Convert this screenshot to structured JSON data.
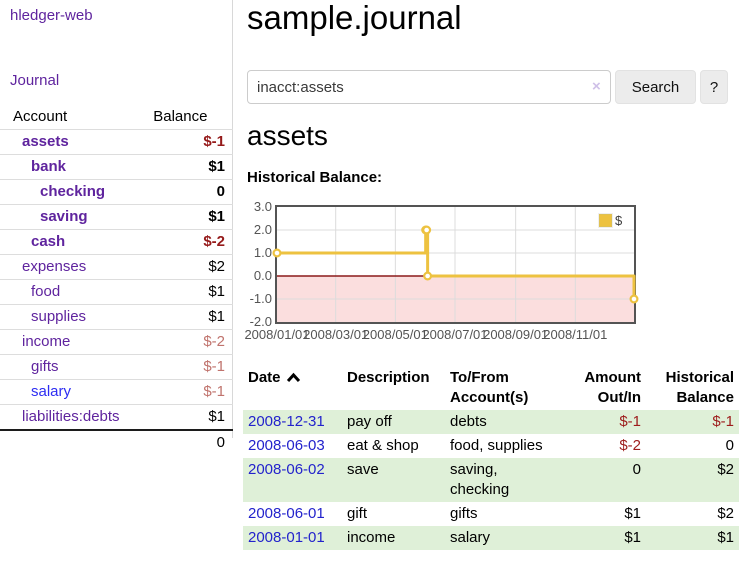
{
  "sidebar": {
    "app_title": "hledger-web",
    "journal_link": "Journal",
    "account_table": {
      "account_header": "Account",
      "balance_header": "Balance",
      "accounts": [
        {
          "name": "assets",
          "balance": "$-1"
        },
        {
          "name": "bank",
          "balance": "$1"
        },
        {
          "name": "checking",
          "balance": "0"
        },
        {
          "name": "saving",
          "balance": "$1"
        },
        {
          "name": "cash",
          "balance": "$-2"
        },
        {
          "name": "expenses",
          "balance": "$2"
        },
        {
          "name": "food",
          "balance": "$1"
        },
        {
          "name": "supplies",
          "balance": "$1"
        },
        {
          "name": "income",
          "balance": "$-2"
        },
        {
          "name": "gifts",
          "balance": "$-1"
        },
        {
          "name": "salary",
          "balance": "$-1"
        },
        {
          "name": "liabilities:debts",
          "balance": "$1"
        }
      ],
      "total": "0"
    }
  },
  "header": {
    "title": "sample.journal"
  },
  "search": {
    "value": "inacct:assets",
    "clear_icon": "×",
    "button_label": "Search",
    "help_label": "?"
  },
  "account_page": {
    "heading": "assets"
  },
  "chart_data": {
    "type": "line",
    "title": "Historical Balance:",
    "step": true,
    "x_range": [
      "2008-01-01",
      "2008-12-31"
    ],
    "ylim": [
      -2,
      3
    ],
    "y_ticks": [
      "3.0",
      "2.0",
      "1.0",
      "0.0",
      "-1.0",
      "-2.0"
    ],
    "x_ticks": [
      "2008/01/01",
      "2008/03/01",
      "2008/05/01",
      "2008/07/01",
      "2008/09/01",
      "2008/11/01"
    ],
    "series": [
      {
        "name": "$",
        "color": "#edc240",
        "points": [
          [
            "2008-01-01",
            1
          ],
          [
            "2008-06-01",
            2
          ],
          [
            "2008-06-02",
            2
          ],
          [
            "2008-06-03",
            0
          ],
          [
            "2008-12-31",
            -1
          ]
        ]
      }
    ],
    "grid_color": "#dcdcdc",
    "negative_region_color": "#fbdede",
    "zero_line_color": "#8b1a1a",
    "legend_position": "top-right"
  },
  "register": {
    "headers": {
      "date": "Date",
      "description": "Description",
      "account": "To/From Account(s)",
      "amount": "Amount Out/In",
      "balance": "Historical Balance"
    },
    "rows": [
      {
        "date": "2008-12-31",
        "description": "pay off",
        "accounts": "debts",
        "amount": "$-1",
        "balance": "$-1"
      },
      {
        "date": "2008-06-03",
        "description": "eat & shop",
        "accounts": "food, supplies",
        "amount": "$-2",
        "balance": "0"
      },
      {
        "date": "2008-06-02",
        "description": "save",
        "accounts": "saving, checking",
        "amount": "0",
        "balance": "$2"
      },
      {
        "date": "2008-06-01",
        "description": "gift",
        "accounts": "gifts",
        "amount": "$1",
        "balance": "$2"
      },
      {
        "date": "2008-01-01",
        "description": "income",
        "accounts": "salary",
        "amount": "$1",
        "balance": "$1"
      }
    ]
  },
  "colors": {
    "accent_purple": "#5f249e",
    "link_blue": "#2323cc",
    "highlight_blue": "#2d2df2",
    "negative_red": "#9d1c1c",
    "negative_dim_red": "#c0736d",
    "row_green": "#dff0d8",
    "chart_gold": "#edc240"
  }
}
